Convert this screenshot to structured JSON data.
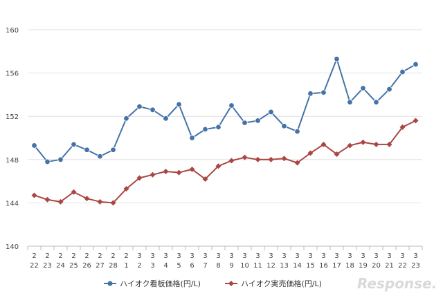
{
  "chart_data": {
    "type": "line",
    "x_top": [
      "2",
      "2",
      "2",
      "2",
      "2",
      "2",
      "2",
      "2",
      "3",
      "3",
      "3",
      "3",
      "3",
      "3",
      "3",
      "3",
      "3",
      "3",
      "3",
      "3",
      "3",
      "3",
      "3",
      "3",
      "3",
      "3",
      "3",
      "3",
      "3",
      "3"
    ],
    "x_bottom": [
      "22",
      "23",
      "24",
      "25",
      "26",
      "27",
      "28",
      "1",
      "2",
      "3",
      "4",
      "5",
      "6",
      "7",
      "8",
      "9",
      "10",
      "11",
      "12",
      "13",
      "14",
      "15",
      "16",
      "17",
      "18",
      "19",
      "20",
      "21",
      "22",
      "23"
    ],
    "ylim": [
      140,
      160
    ],
    "yticks": [
      "140",
      "144",
      "148",
      "152",
      "156",
      "160"
    ],
    "series": [
      {
        "name": "ハイオク看板価格(円/L)",
        "color": "#4572A7",
        "marker": "circle",
        "values": [
          149.3,
          147.8,
          148.0,
          149.4,
          148.9,
          148.3,
          148.9,
          151.8,
          152.9,
          152.6,
          151.8,
          153.1,
          150.0,
          150.8,
          151.0,
          153.0,
          151.4,
          151.6,
          152.4,
          151.1,
          150.6,
          154.1,
          154.2,
          157.3,
          153.3,
          154.6,
          153.3,
          154.5,
          156.1,
          156.8
        ]
      },
      {
        "name": "ハイオク実売価格(円/L)",
        "color": "#AA4643",
        "marker": "diamond",
        "values": [
          144.7,
          144.3,
          144.1,
          145.0,
          144.4,
          144.1,
          144.0,
          145.3,
          146.3,
          146.6,
          146.9,
          146.8,
          147.1,
          146.2,
          147.4,
          147.9,
          148.2,
          148.0,
          148.0,
          148.1,
          147.7,
          148.6,
          149.4,
          148.5,
          149.3,
          149.6,
          149.4,
          149.4,
          151.0,
          151.6
        ]
      }
    ]
  },
  "legend": {
    "item1": "ハイオク看板価格(円/L)",
    "item2": "ハイオク実売価格(円/L)"
  },
  "watermark": "Response."
}
